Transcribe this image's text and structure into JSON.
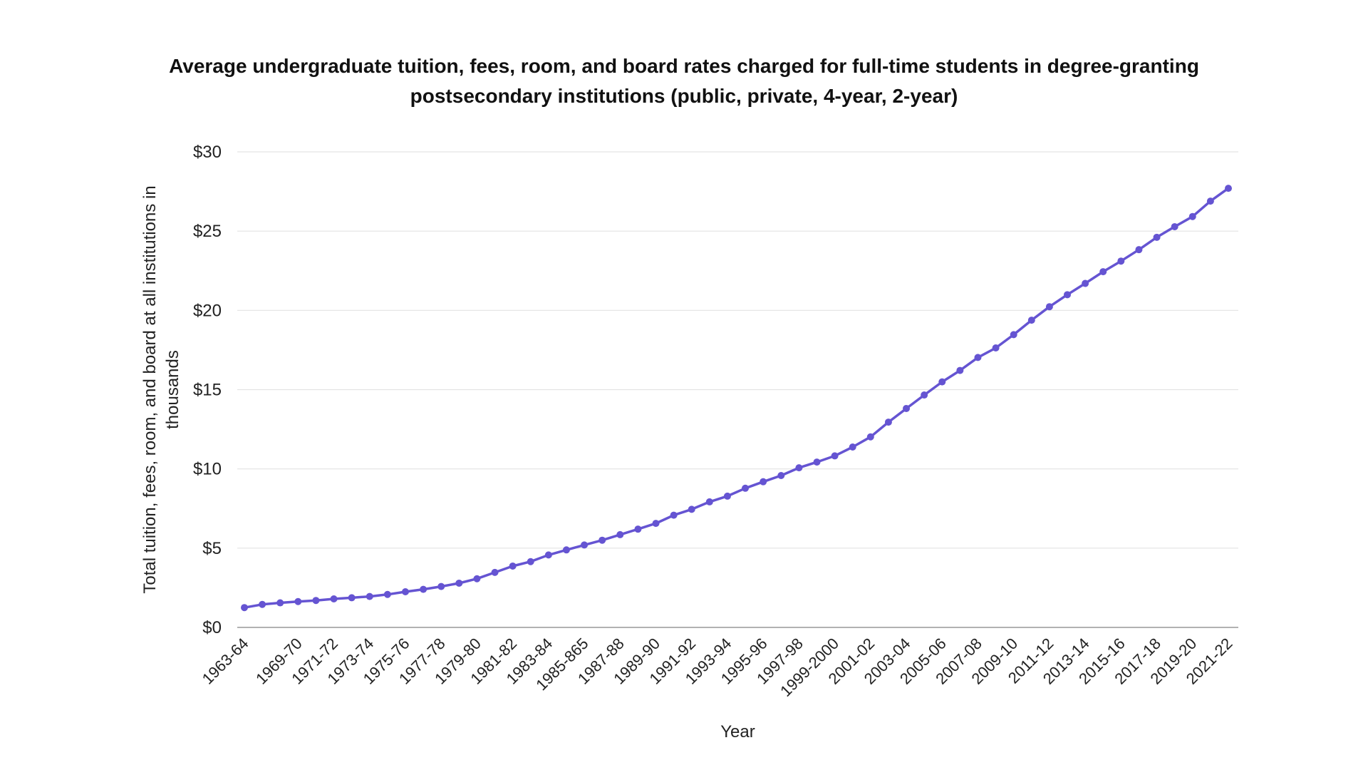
{
  "chart_data": {
    "type": "line",
    "title": "Average undergraduate tuition, fees, room, and board rates charged for full-time students in degree-granting postsecondary institutions (public, private, 4-year, 2-year)",
    "xlabel": "Year",
    "ylabel": "Total tuition, fees, room, and board at all institutions in thousands",
    "ylim": [
      0,
      30
    ],
    "y_ticks": [
      "$0",
      "$5",
      "$10",
      "$15",
      "$20",
      "$25",
      "$30"
    ],
    "y_tick_values": [
      0,
      5,
      10,
      15,
      20,
      25,
      30
    ],
    "grid": "horizontal",
    "legend": "none",
    "x_tick_labels": [
      "1963-64",
      "1969-70",
      "1971-72",
      "1973-74",
      "1975-76",
      "1977-78",
      "1979-80",
      "1981-82",
      "1983-84",
      "1985-865",
      "1987-88",
      "1989-90",
      "1991-92",
      "1993-94",
      "1995-96",
      "1997-98",
      "1999-2000",
      "2001-02",
      "2003-04",
      "2005-06",
      "2007-08",
      "2009-10",
      "2011-12",
      "2013-14",
      "2015-16",
      "2017-18",
      "2019-20",
      "2021-22"
    ],
    "series": [
      {
        "color": "#6554d2",
        "values": [
          1.25,
          1.45,
          1.55,
          1.63,
          1.7,
          1.8,
          1.87,
          1.95,
          2.08,
          2.25,
          2.4,
          2.58,
          2.79,
          3.07,
          3.47,
          3.87,
          4.15,
          4.57,
          4.89,
          5.2,
          5.5,
          5.85,
          6.2,
          6.56,
          7.08,
          7.45,
          7.92,
          8.28,
          8.78,
          9.19,
          9.58,
          10.07,
          10.43,
          10.82,
          11.38,
          12.02,
          12.95,
          13.81,
          14.66,
          15.49,
          16.21,
          17.03,
          17.63,
          18.47,
          19.38,
          20.23,
          20.99,
          21.7,
          22.44,
          23.11,
          23.83,
          24.61,
          25.28,
          25.92,
          26.89,
          27.7
        ]
      }
    ]
  }
}
